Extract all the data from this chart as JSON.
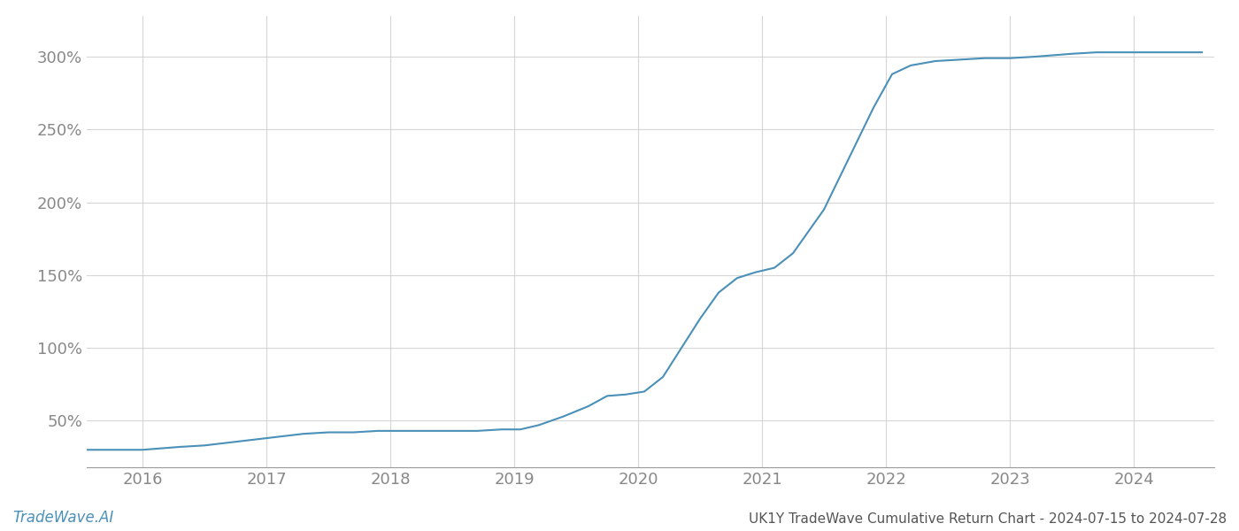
{
  "title": "UK1Y TradeWave Cumulative Return Chart - 2024-07-15 to 2024-07-28",
  "watermark": "TradeWave.AI",
  "line_color": "#4a90b8",
  "background_color": "#ffffff",
  "grid_color": "#cccccc",
  "x_values": [
    2015.55,
    2016.0,
    2016.15,
    2016.3,
    2016.5,
    2016.7,
    2016.9,
    2017.1,
    2017.3,
    2017.5,
    2017.7,
    2017.9,
    2018.1,
    2018.3,
    2018.5,
    2018.7,
    2018.9,
    2019.05,
    2019.2,
    2019.4,
    2019.6,
    2019.75,
    2019.9,
    2020.05,
    2020.2,
    2020.35,
    2020.5,
    2020.65,
    2020.8,
    2020.95,
    2021.1,
    2021.25,
    2021.5,
    2021.7,
    2021.9,
    2022.05,
    2022.2,
    2022.4,
    2022.6,
    2022.8,
    2023.0,
    2023.2,
    2023.5,
    2023.7,
    2023.9,
    2024.1,
    2024.3,
    2024.55
  ],
  "y_values": [
    30,
    30,
    31,
    32,
    33,
    35,
    37,
    39,
    41,
    42,
    42,
    43,
    43,
    43,
    43,
    43,
    44,
    44,
    47,
    53,
    60,
    67,
    68,
    70,
    80,
    100,
    120,
    138,
    148,
    152,
    155,
    165,
    195,
    230,
    265,
    288,
    294,
    297,
    298,
    299,
    299,
    300,
    302,
    303,
    303,
    303,
    303,
    303
  ],
  "xlim": [
    2015.55,
    2024.65
  ],
  "ylim": [
    18,
    328
  ],
  "yticks": [
    50,
    100,
    150,
    200,
    250,
    300
  ],
  "xticks": [
    2016,
    2017,
    2018,
    2019,
    2020,
    2021,
    2022,
    2023,
    2024
  ],
  "line_width": 1.5,
  "tick_label_color": "#888888",
  "title_color": "#555555",
  "watermark_color": "#4a90b8",
  "title_fontsize": 11,
  "watermark_fontsize": 12
}
